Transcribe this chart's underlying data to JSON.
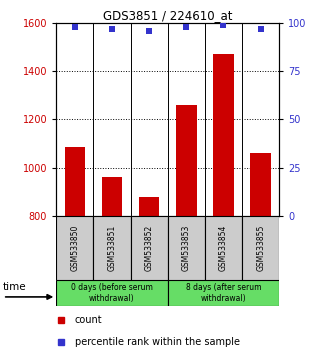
{
  "title": "GDS3851 / 224610_at",
  "samples": [
    "GSM533850",
    "GSM533851",
    "GSM533852",
    "GSM533853",
    "GSM533854",
    "GSM533855"
  ],
  "counts": [
    1085,
    960,
    880,
    1260,
    1470,
    1060
  ],
  "percentile_ranks": [
    98,
    97,
    96,
    98,
    99,
    97
  ],
  "ylim_left": [
    800,
    1600
  ],
  "ylim_right": [
    0,
    100
  ],
  "yticks_left": [
    800,
    1000,
    1200,
    1400,
    1600
  ],
  "yticks_right": [
    0,
    25,
    50,
    75,
    100
  ],
  "bar_color": "#cc0000",
  "dot_color": "#3333cc",
  "group1_label": "0 days (before serum\nwithdrawal)",
  "group2_label": "8 days (after serum\nwithdrawal)",
  "group_bg_color": "#66dd66",
  "sample_bg_color": "#cccccc",
  "bar_width": 0.55,
  "fig_width": 3.21,
  "fig_height": 3.54,
  "dpi": 100
}
